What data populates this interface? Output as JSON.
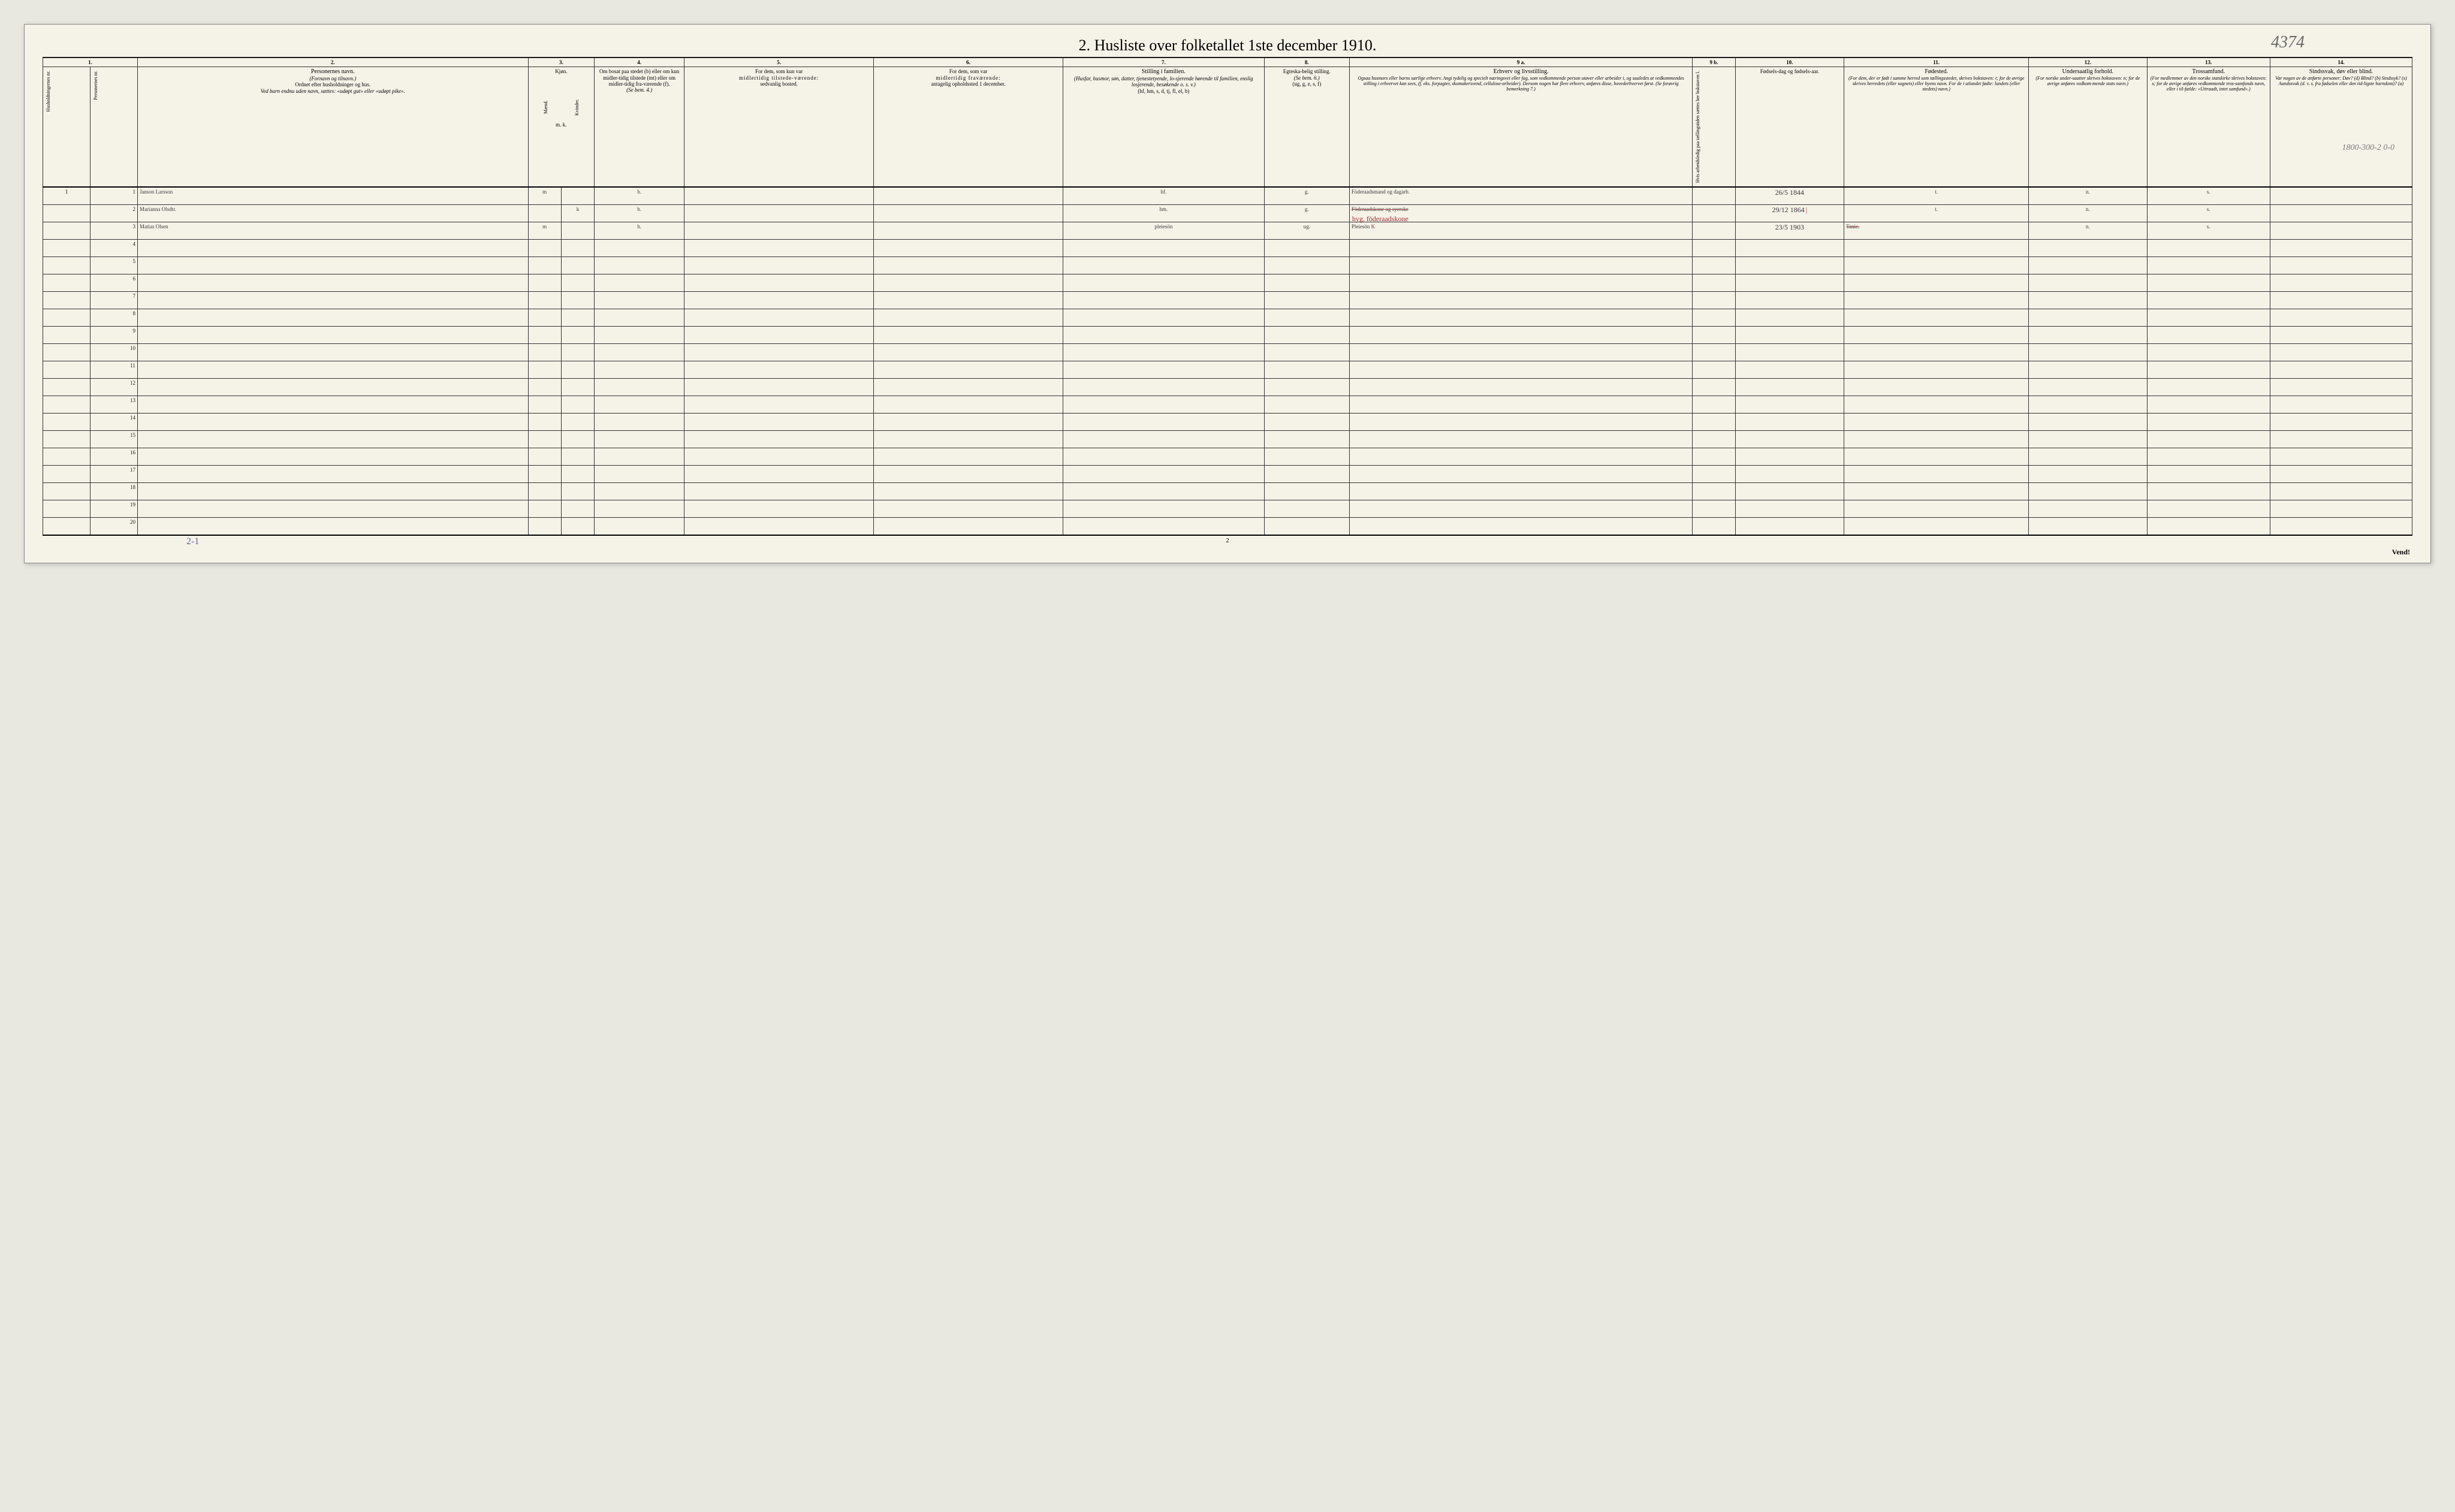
{
  "title": "2.   Husliste over folketallet 1ste december 1910.",
  "top_handwritten": "4374",
  "margin_right_note": "1800-300-2   0-0",
  "columns": {
    "c1": "1.",
    "c2": "2.",
    "c3": "3.",
    "c4": "4.",
    "c5": "5.",
    "c6": "6.",
    "c7": "7.",
    "c8": "8.",
    "c9a": "9 a.",
    "c9b": "9 b.",
    "c10": "10.",
    "c11": "11.",
    "c12": "12.",
    "c13": "13.",
    "c14": "14."
  },
  "headers": {
    "h1a": "Husholdningernes nr.",
    "h1b": "Personernes nr.",
    "h2_title": "Personernes navn.",
    "h2_sub1": "(Fornavn og tilnavn.)",
    "h2_sub2": "Ordnet efter husholdninger og hus.",
    "h2_sub3": "Ved barn endnu uden navn, sættes: «udøpt gut» eller «udøpt pike».",
    "h3_title": "Kjøn.",
    "h3_m": "Mænd.",
    "h3_k": "Kvinder.",
    "h3_mk": "m.  k.",
    "h4_title": "Om bosat paa stedet (b) eller om kun midler-tidig tilstede (mt) eller om midler-tidig fra-værende (f).",
    "h4_sub": "(Se bem. 4.)",
    "h5_title": "For dem, som kun var",
    "h5_sub1": "midlertidig tilstede-værende:",
    "h5_sub2": "sedvanlig bosted.",
    "h6_title": "For dem, som var",
    "h6_sub1": "midlertidig fraværende:",
    "h6_sub2": "antagelig opholdssted 1 december.",
    "h7_title": "Stilling i familien.",
    "h7_sub1": "(Husfar, husmor, søn, datter, tjenestetyende, lo-sjerende hørende til familien, enslig losjerende, besøkende o. s. v.)",
    "h7_sub2": "(hf, hm, s, d, tj, fl, el, b)",
    "h8_title": "Egteska-belig stilling.",
    "h8_sub1": "(Se bem. 6.)",
    "h8_sub2": "(ug, g, e, s, f)",
    "h9a_title": "Erhverv og livsstilling.",
    "h9a_sub": "Ogsaa husmors eller barns særlige erhverv. Angi tydelig og specielt næringsvei eller fag, som vedkommende person utøver eller arbeider i, og saaledes at vedkommendes stilling i erhvervet kan sees, (f. eks. forpagter, skomakersvend, cellulose-arbeider). Dersom nogen har flere erhverv, anføres disse, hovederhvervet først. (Se forøvrig bemerkning 7.)",
    "h9b": "Hvis arbeidsledig paa tællingstiden sættes her bokstaven l.",
    "h10_title": "Fødsels-dag og fødsels-aar.",
    "h11_title": "Fødested.",
    "h11_sub": "(For dem, der er født i samme herred som tællingsstedet, skrives bokstaven: t; for de øvrige skrives herredets (eller sognets) eller byens navn. For de i utlandet fødte: landets (eller stedets) navn.)",
    "h12_title": "Undersaatlig forhold.",
    "h12_sub": "(For norske under-saatter skrives bokstaven: n; for de øvrige anføres vedkom-mende stats navn.)",
    "h13_title": "Trossamfund.",
    "h13_sub": "(For medlemmer av den norske statskirke skrives bokstaven: s; for de øvrige anføres vedkommende tros-samfunds navn, eller i til-fælde: «Uttraadt, intet samfund».)",
    "h14_title": "Sindssvak, døv eller blind.",
    "h14_sub": "Var nogen av de anførte personer: Døv? (d) Blind? (b) Sindssyk? (s) Aandssvak (d. v. s. fra fødselen eller den tid-ligste barndom)? (a)"
  },
  "rows": [
    {
      "hh": "1",
      "pn": "1",
      "name": "Janson Larsson",
      "m": "m",
      "k": "",
      "res": "b.",
      "c5": "",
      "c6": "",
      "fam": "hf.",
      "mar": "g.",
      "occ": "Föderaadsmand og dagarb.",
      "c9b": "",
      "dob": "26/5 1844",
      "birthplace": "t.",
      "nat": "n.",
      "rel": "s.",
      "dis": ""
    },
    {
      "hh": "",
      "pn": "2",
      "name": "Marianna Olsdtr.",
      "m": "",
      "k": "k",
      "res": "b.",
      "c5": "",
      "c6": "",
      "fam": "hm.",
      "mar": "g.",
      "occ": "Föderaadskone og syerske",
      "c9b": "",
      "dob": "29/12 1864",
      "birthplace": "t.",
      "nat": "n.",
      "rel": "s.",
      "dis": ""
    },
    {
      "hh": "",
      "pn": "3",
      "name": "Matias Olsen",
      "m": "m",
      "k": "",
      "res": "b.",
      "c5": "",
      "c6": "",
      "fam": "pleiesön",
      "mar": "ug.",
      "occ": "Pleiesön",
      "c9b": "",
      "dob": "23/5 1903",
      "birthplace": "Tanie.",
      "nat": "n.",
      "rel": "s.",
      "dis": ""
    }
  ],
  "row2_red_overwrite": "hyg. föderaadskone",
  "row1_occ_suffix_strike": "",
  "empty_rows_start": 4,
  "empty_rows_end": 20,
  "footer_21": "2-1",
  "page_num": "2",
  "vend": "Vend!",
  "colors": {
    "paper": "#f5f2e8",
    "ink": "#222222",
    "handwriting": "#3a3a3a",
    "blue": "#5a6aa8",
    "red": "#a03030",
    "pencil": "#6a6a6a"
  },
  "col_widths_pct": [
    2.0,
    2.0,
    16.5,
    1.4,
    1.4,
    3.8,
    8.0,
    8.0,
    8.5,
    3.6,
    14.5,
    1.8,
    4.6,
    7.8,
    5.0,
    5.2,
    6.0
  ]
}
